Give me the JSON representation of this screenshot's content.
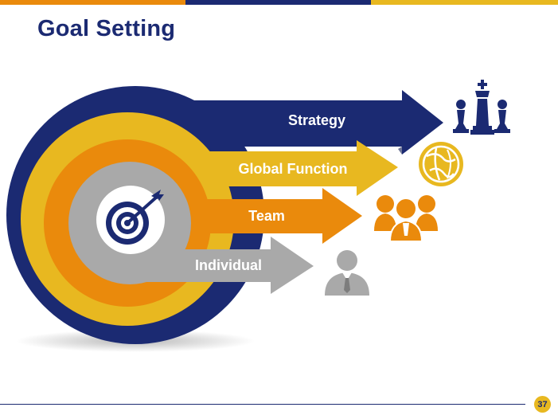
{
  "slide": {
    "title": "Goal Setting",
    "page_number": "37"
  },
  "colors": {
    "navy": "#1b2a72",
    "gold": "#e8b820",
    "orange": "#ea8a0c",
    "gray": "#a9a9a9",
    "top_bar": [
      "#ea8a0c",
      "#1b2a72",
      "#e8b820"
    ]
  },
  "levels": [
    {
      "label": "Strategy",
      "icon": "chess-pieces-icon",
      "color": "#1b2a72"
    },
    {
      "label": "Global Function",
      "icon": "globe-icon",
      "color": "#e8b820"
    },
    {
      "label": "Team",
      "icon": "team-icon",
      "color": "#ea8a0c"
    },
    {
      "label": "Individual",
      "icon": "person-icon",
      "color": "#a9a9a9"
    }
  ],
  "center_icon": "target-icon"
}
